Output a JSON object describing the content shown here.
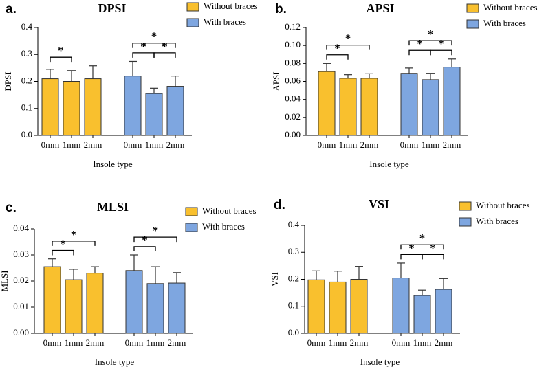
{
  "chart_data": [
    {
      "type": "bar",
      "panel": "a.",
      "title": "DPSI",
      "ylabel": "DPSI",
      "xlabel": "Insole type",
      "categories": [
        "0mm",
        "1mm",
        "2mm"
      ],
      "series": [
        {
          "name": "Without braces",
          "color": "#f9c02e",
          "values": [
            0.21,
            0.2,
            0.21
          ],
          "errors": [
            0.035,
            0.04,
            0.048
          ]
        },
        {
          "name": "With braces",
          "color": "#7ea6e0",
          "values": [
            0.22,
            0.155,
            0.182
          ],
          "errors": [
            0.054,
            0.02,
            0.038
          ]
        }
      ],
      "ylim": [
        0,
        0.4
      ],
      "yticks": [
        {
          "value": 0,
          "label": "0.0"
        },
        0.1,
        0.2,
        0.3,
        0.4
      ],
      "significance": [
        {
          "series": "Without braces",
          "from": "0mm",
          "to": "1mm",
          "label": "*"
        },
        {
          "series": "With braces",
          "from": "0mm",
          "to": "1mm",
          "label": "*"
        },
        {
          "series": "With braces",
          "from": "1mm",
          "to": "2mm",
          "label": "*"
        },
        {
          "series": "With braces",
          "from": "0mm",
          "to": "2mm",
          "label": "*"
        }
      ]
    },
    {
      "type": "bar",
      "panel": "b.",
      "title": "APSI",
      "ylabel": "APSI",
      "xlabel": "Insole type",
      "categories": [
        "0mm",
        "1mm",
        "2mm"
      ],
      "series": [
        {
          "name": "Without braces",
          "color": "#f9c02e",
          "values": [
            0.071,
            0.0635,
            0.0635
          ],
          "errors": [
            0.009,
            0.004,
            0.005
          ]
        },
        {
          "name": "With braces",
          "color": "#7ea6e0",
          "values": [
            0.069,
            0.062,
            0.076
          ],
          "errors": [
            0.006,
            0.007,
            0.009
          ]
        }
      ],
      "ylim": [
        0,
        0.12
      ],
      "yticks": [
        {
          "value": 0,
          "label": "0.00"
        },
        0.02,
        0.04,
        0.06,
        0.08,
        {
          "value": 0.1,
          "label": "0.10"
        },
        0.12
      ],
      "significance": [
        {
          "series": "Without braces",
          "from": "0mm",
          "to": "1mm",
          "label": "*"
        },
        {
          "series": "Without braces",
          "from": "0mm",
          "to": "2mm",
          "label": "*"
        },
        {
          "series": "With braces",
          "from": "0mm",
          "to": "1mm",
          "label": "*"
        },
        {
          "series": "With braces",
          "from": "1mm",
          "to": "2mm",
          "label": "*"
        },
        {
          "series": "With braces",
          "from": "0mm",
          "to": "2mm",
          "label": "*"
        }
      ]
    },
    {
      "type": "bar",
      "panel": "c.",
      "title": "MLSI",
      "ylabel": "MLSI",
      "xlabel": "Insole type",
      "categories": [
        "0mm",
        "1mm",
        "2mm"
      ],
      "series": [
        {
          "name": "Without braces",
          "color": "#f9c02e",
          "values": [
            0.0255,
            0.0205,
            0.023
          ],
          "errors": [
            0.003,
            0.004,
            0.0025
          ]
        },
        {
          "name": "With braces",
          "color": "#7ea6e0",
          "values": [
            0.024,
            0.019,
            0.0192
          ],
          "errors": [
            0.006,
            0.0065,
            0.004
          ]
        }
      ],
      "ylim": [
        0,
        0.04
      ],
      "yticks": [
        {
          "value": 0,
          "label": "0.00"
        },
        0.01,
        0.02,
        0.03,
        0.04
      ],
      "significance": [
        {
          "series": "Without braces",
          "from": "0mm",
          "to": "1mm",
          "label": "*"
        },
        {
          "series": "Without braces",
          "from": "0mm",
          "to": "2mm",
          "label": "*"
        },
        {
          "series": "With braces",
          "from": "0mm",
          "to": "1mm",
          "label": "*"
        },
        {
          "series": "With braces",
          "from": "0mm",
          "to": "2mm",
          "label": "*"
        }
      ]
    },
    {
      "type": "bar",
      "panel": "d.",
      "title": "VSI",
      "ylabel": "VSI",
      "xlabel": "Insole type",
      "categories": [
        "0mm",
        "1mm",
        "2mm"
      ],
      "series": [
        {
          "name": "Without braces",
          "color": "#f9c02e",
          "values": [
            0.198,
            0.19,
            0.2
          ],
          "errors": [
            0.033,
            0.04,
            0.048
          ]
        },
        {
          "name": "With braces",
          "color": "#7ea6e0",
          "values": [
            0.205,
            0.14,
            0.163
          ],
          "errors": [
            0.055,
            0.02,
            0.04
          ]
        }
      ],
      "ylim": [
        0,
        0.4
      ],
      "yticks": [
        {
          "value": 0,
          "label": "0.0"
        },
        0.1,
        0.2,
        0.3,
        0.4
      ],
      "significance": [
        {
          "series": "With braces",
          "from": "0mm",
          "to": "1mm",
          "label": "*"
        },
        {
          "series": "With braces",
          "from": "1mm",
          "to": "2mm",
          "label": "*"
        },
        {
          "series": "With braces",
          "from": "0mm",
          "to": "2mm",
          "label": "*"
        }
      ]
    }
  ]
}
